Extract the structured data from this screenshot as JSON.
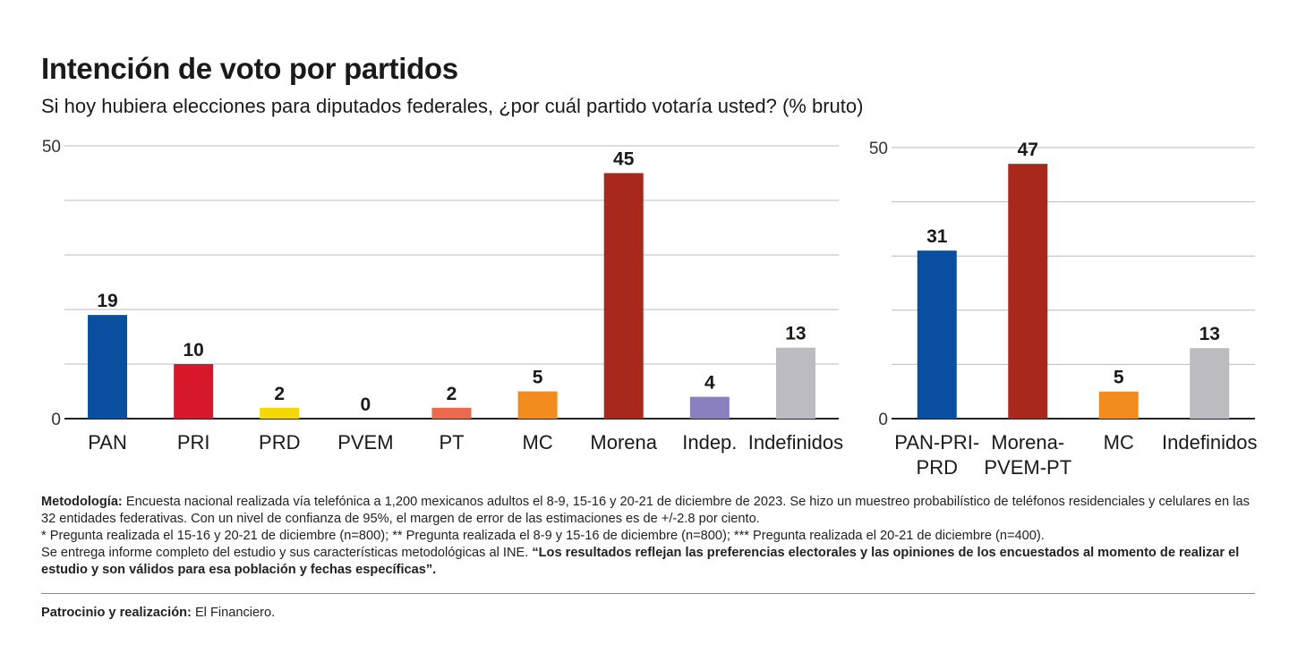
{
  "header": {
    "title": "Intención de voto por partidos",
    "subtitle": "Si hoy hubiera elecciones para diputados federales, ¿por cuál partido votaría usted? (% bruto)"
  },
  "chart_data": [
    {
      "type": "bar",
      "categories": [
        "PAN",
        "PRI",
        "PRD",
        "PVEM",
        "PT",
        "MC",
        "Morena",
        "Indep.",
        "Indefinidos"
      ],
      "values": [
        19,
        10,
        2,
        0,
        2,
        5,
        45,
        4,
        13
      ],
      "value_labels": [
        "19",
        "10",
        "2",
        "0",
        "2",
        "5",
        "45",
        "4",
        "13"
      ],
      "colors": [
        "#0a4f9f",
        "#d7182a",
        "#f4d800",
        "#3a9a3a",
        "#ee6a4e",
        "#f28c1e",
        "#a8281c",
        "#8a7fbf",
        "#bcbcc0"
      ],
      "ylim": [
        0,
        50
      ],
      "ytick_labels": [
        "0",
        "50"
      ],
      "grid": true
    },
    {
      "type": "bar",
      "categories": [
        [
          "PAN-PRI-",
          "PRD"
        ],
        [
          "Morena-",
          "PVEM-PT"
        ],
        [
          "MC"
        ],
        [
          "Indefinidos"
        ]
      ],
      "values": [
        31,
        47,
        5,
        13
      ],
      "value_labels": [
        "31",
        "47",
        "5",
        "13"
      ],
      "colors": [
        "#0a4f9f",
        "#a8281c",
        "#f28c1e",
        "#bcbcc0"
      ],
      "ylim": [
        0,
        50
      ],
      "ytick_labels": [
        "0",
        "50"
      ],
      "grid": true
    }
  ],
  "notes": {
    "methodology_label": "Metodología:",
    "methodology_text": " Encuesta nacional realizada vía telefónica a 1,200 mexicanos adultos el 8-9, 15-16 y 20-21 de diciembre de 2023. Se hizo un muestreo probabilístico de teléfonos residenciales y celulares en las 32 entidades federativas. Con un nivel de confianza de 95%, el margen de error de las estimaciones es de +/-2.8 por ciento.",
    "footnotes": "* Pregunta realizada el 15-16 y 20-21 de diciembre (n=800); ** Pregunta realizada el 8-9 y 15-16 de diciembre (n=800); *** Pregunta realizada el 20-21 de diciembre (n=400).",
    "ine_text": "Se entrega informe completo del estudio y sus características metodológicas al INE. ",
    "disclaimer": "“Los resultados reflejan las preferencias electorales y las opiniones de los encuestados al momento de realizar el estudio y son válidos para esa población y fechas específicas”."
  },
  "sponsor": {
    "label": "Patrocinio y realización:",
    "value": " El Financiero."
  }
}
